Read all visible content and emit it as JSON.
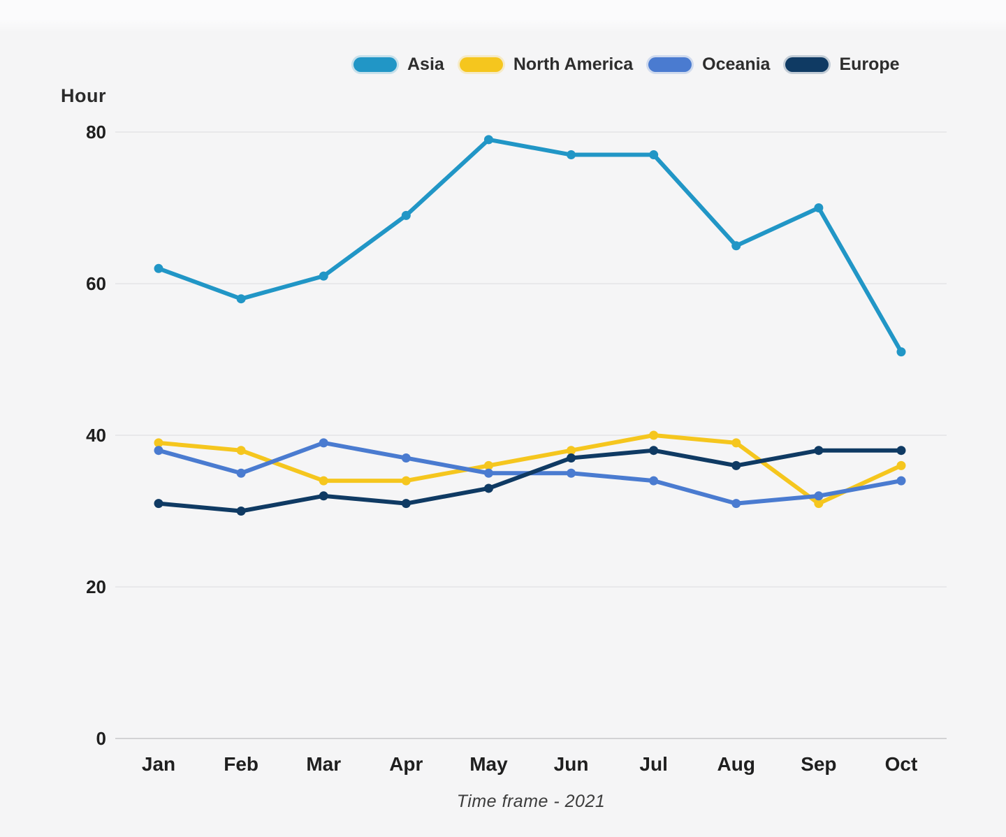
{
  "page": {
    "background": "#f5f5f6"
  },
  "chart_data": {
    "type": "line",
    "ylabel": "Hour",
    "xlabel": "Time frame - 2021",
    "categories": [
      "Jan",
      "Feb",
      "Mar",
      "Apr",
      "May",
      "Jun",
      "Jul",
      "Aug",
      "Sep",
      "Oct"
    ],
    "y_ticks": [
      80,
      60,
      40,
      20,
      0
    ],
    "ylim": [
      0,
      84
    ],
    "grid": true,
    "legend_position": "top",
    "series": [
      {
        "name": "Asia",
        "color": "#2196c6",
        "values": [
          62,
          58,
          61,
          69,
          79,
          77,
          77,
          65,
          70,
          51
        ]
      },
      {
        "name": "North America",
        "color": "#f5c61e",
        "values": [
          39,
          38,
          34,
          34,
          36,
          38,
          40,
          39,
          31,
          36
        ]
      },
      {
        "name": "Oceania",
        "color": "#4a7bd0",
        "values": [
          38,
          35,
          39,
          37,
          35,
          35,
          34,
          31,
          32,
          34
        ]
      },
      {
        "name": "Europe",
        "color": "#0f3a63",
        "values": [
          31,
          30,
          32,
          31,
          33,
          37,
          38,
          36,
          38,
          38
        ]
      }
    ]
  }
}
